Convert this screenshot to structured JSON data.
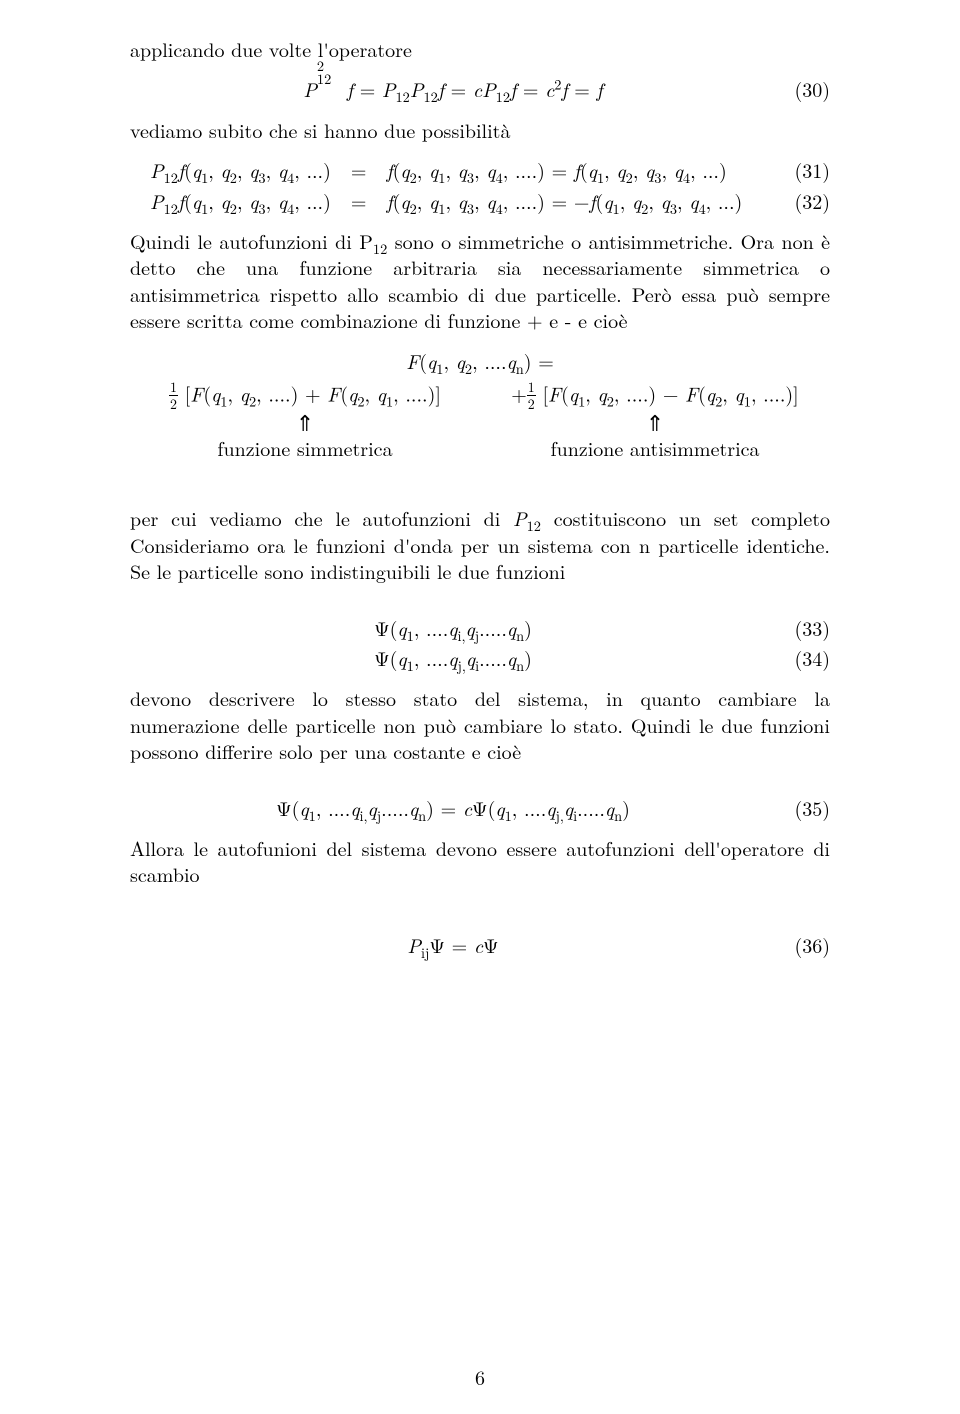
{
  "p1": "applicando due volte l'operatore",
  "eq30": {
    "body": "P₁₂² f = P₁₂P₁₂ f = cP₁₂ f = c² f = f",
    "num": "(30)"
  },
  "p2": "vediamo subito che si hanno due possibilità",
  "eq31": {
    "left": "P₁₂ f(q₁, q₂, q₃, q₄, ...) = f(q₂, q₁, q₃, q₄, ....) = f(q₁, q₂, q₃, q₄, ...)",
    "num": "(31)"
  },
  "eq32": {
    "left": "P₁₂ f(q₁, q₂, q₃, q₄, ...) = f(q₂, q₁, q₃, q₄, ....) = −f(q₁, q₂, q₃, q₄, ...)",
    "num": "(32)"
  },
  "p3": "Quindi le autofunzioni di P₁₂ sono o simmetriche o antisimmetriche. Ora non è detto che una funzione arbitraria sia necessariamente simmetrica o antisimmetrica rispetto allo scambio di due particelle. Però essa può sempre essere scritta come combinazione di funzione + e - e cioè",
  "sym": {
    "top": "F(q₁, q₂, ....qₙ) =",
    "left_expr_a": " [F(q₁, q₂, ....) + F(q₂, q₁, ....)]",
    "right_expr_a": " [F(q₁, q₂, ....) − F(q₂, q₁, ....)]",
    "plus": "+",
    "arrow": "⇑",
    "left_label": "funzione simmetrica",
    "right_label": "funzione antisimmetrica"
  },
  "p4": "per cui vediamo che le autofunzioni di P₁₂ costituiscono un set completo Consideriamo ora le funzioni d'onda per un sistema con n particelle identiche. Se le particelle sono indistinguibili le due funzioni",
  "eq33": {
    "body": "Ψ(q₁, ....qᵢ,qⱼ.....qₙ)",
    "num": "(33)"
  },
  "eq34": {
    "body": "Ψ(q₁, ....qⱼ,qᵢ.....qₙ)",
    "num": "(34)"
  },
  "p5": "devono descrivere lo stesso stato del sistema, in quanto cambiare la numerazione delle particelle non può cambiare lo stato. Quindi le due funzioni possono differire solo per una costante e cioè",
  "eq35": {
    "body": "Ψ(q₁, ....qᵢ,qⱼ.....qₙ) = cΨ(q₁, ....qⱼ,qᵢ.....qₙ)",
    "num": "(35)"
  },
  "p6": "Allora le autofunioni del sistema devono essere autofunzioni dell'operatore di scambio",
  "eq36": {
    "body": "PᵢⱼΨ = cΨ",
    "num": "(36)"
  },
  "pageno": "6"
}
